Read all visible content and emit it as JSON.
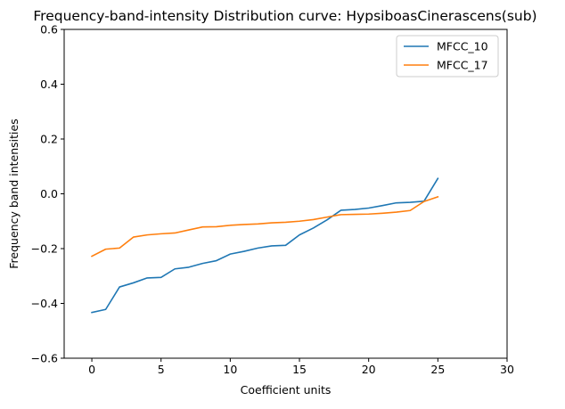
{
  "chart_data": {
    "type": "line",
    "title": "Frequency-band-intensity Distribution curve: HypsiboasCinerascens(sub)",
    "xlabel": "Coefficient units",
    "ylabel": "Frequency band intensities",
    "xlim": [
      -2,
      30
    ],
    "ylim": [
      -0.6,
      0.6
    ],
    "xticks": [
      0,
      5,
      10,
      15,
      20,
      25,
      30
    ],
    "yticks": [
      -0.6,
      -0.4,
      -0.2,
      0.0,
      0.2,
      0.4,
      0.6
    ],
    "xtick_labels": [
      "0",
      "5",
      "10",
      "15",
      "20",
      "25",
      "30"
    ],
    "ytick_labels": [
      "−0.6",
      "−0.4",
      "−0.2",
      "0.0",
      "0.2",
      "0.4",
      "0.6"
    ],
    "grid": false,
    "legend_position": "top-right",
    "x": [
      0,
      1,
      2,
      3,
      4,
      5,
      6,
      7,
      8,
      9,
      10,
      11,
      12,
      13,
      14,
      15,
      16,
      17,
      18,
      19,
      20,
      21,
      22,
      23,
      24,
      25
    ],
    "series": [
      {
        "name": "MFCC_10",
        "color": "#1f77b4",
        "values": [
          -0.433,
          -0.422,
          -0.34,
          -0.325,
          -0.307,
          -0.305,
          -0.274,
          -0.268,
          -0.254,
          -0.244,
          -0.22,
          -0.21,
          -0.198,
          -0.19,
          -0.188,
          -0.15,
          -0.125,
          -0.095,
          -0.06,
          -0.057,
          -0.052,
          -0.043,
          -0.033,
          -0.031,
          -0.027,
          0.056
        ]
      },
      {
        "name": "MFCC_17",
        "color": "#ff7f0e",
        "values": [
          -0.228,
          -0.202,
          -0.198,
          -0.158,
          -0.15,
          -0.146,
          -0.143,
          -0.132,
          -0.121,
          -0.12,
          -0.115,
          -0.112,
          -0.11,
          -0.106,
          -0.104,
          -0.1,
          -0.094,
          -0.085,
          -0.076,
          -0.075,
          -0.074,
          -0.071,
          -0.067,
          -0.061,
          -0.028,
          -0.011
        ]
      }
    ]
  }
}
